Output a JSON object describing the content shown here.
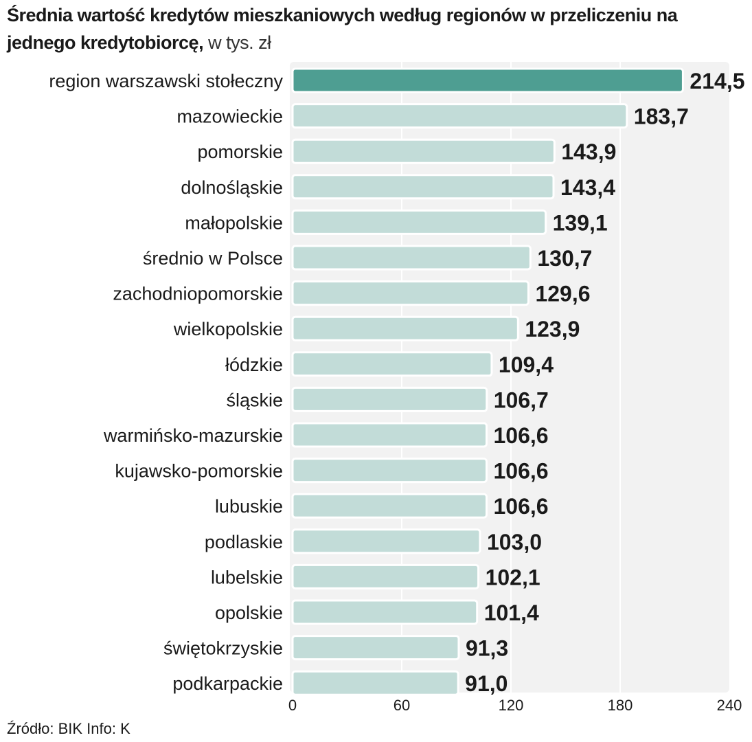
{
  "title_bold": "Średnia wartość kredytów mieszkaniowych według regionów w przeliczeniu na jednego kredytobiorcę,",
  "title_unit": " w tys. zł",
  "source": "Źródło: BIK Info: K",
  "colors": {
    "highlight": "#4e9e92",
    "bar": "#c2dcd8",
    "plot_bg": "#f2f2f2",
    "grid": "#ffffff"
  },
  "chart_data": {
    "type": "bar",
    "orientation": "horizontal",
    "categories": [
      "region warszawski stołeczny",
      "mazowieckie",
      "pomorskie",
      "dolnośląskie",
      "małopolskie",
      "średnio w Polsce",
      "zachodniopomorskie",
      "wielkopolskie",
      "łódzkie",
      "śląskie",
      "warmińsko-mazurskie",
      "kujawsko-pomorskie",
      "lubuskie",
      "podlaskie",
      "lubelskie",
      "opolskie",
      "świętokrzyskie",
      "podkarpackie"
    ],
    "values": [
      214.5,
      183.7,
      143.9,
      143.4,
      139.1,
      130.7,
      129.6,
      123.9,
      109.4,
      106.7,
      106.6,
      106.6,
      106.6,
      103.0,
      102.1,
      101.4,
      91.3,
      91.0
    ],
    "value_labels": [
      "214,5",
      "183,7",
      "143,9",
      "143,4",
      "139,1",
      "130,7",
      "129,6",
      "123,9",
      "109,4",
      "106,7",
      "106,6",
      "106,6",
      "106,6",
      "103,0",
      "102,1",
      "101,4",
      "91,3",
      "91,0"
    ],
    "highlight_index": 0,
    "xlim": [
      0,
      240
    ],
    "xticks": [
      0,
      60,
      120,
      180,
      240
    ],
    "xtick_labels": [
      "0",
      "60",
      "120",
      "180",
      "240"
    ],
    "grid": true,
    "legend": false
  }
}
